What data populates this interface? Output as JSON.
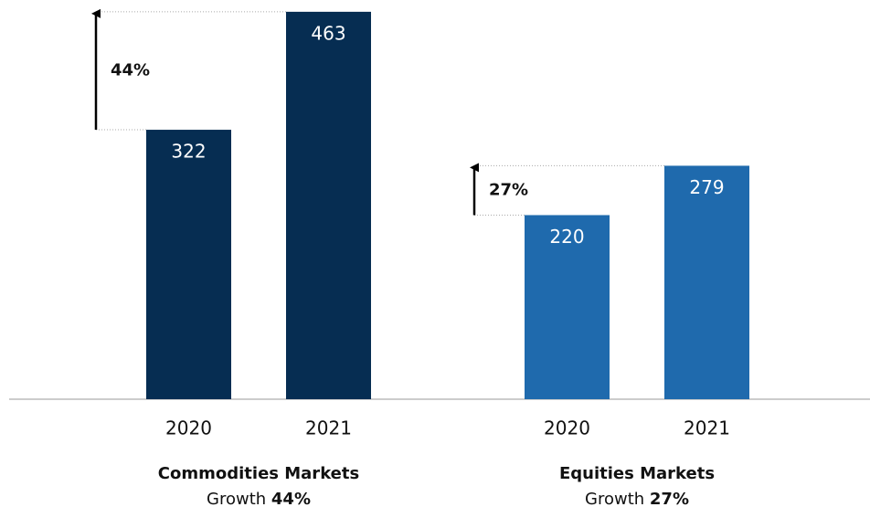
{
  "chart_data": {
    "type": "bar",
    "groups": [
      {
        "name": "Commodities Markets",
        "categories": [
          "2020",
          "2021"
        ],
        "values": [
          322,
          463
        ],
        "color": "#062d52",
        "annotation": "44%",
        "growth_text": "Growth"
      },
      {
        "name": "Equities Markets",
        "categories": [
          "2020",
          "2021"
        ],
        "values": [
          220,
          279
        ],
        "color": "#1f6aad",
        "annotation": "27%",
        "growth_text": "Growth"
      }
    ]
  }
}
